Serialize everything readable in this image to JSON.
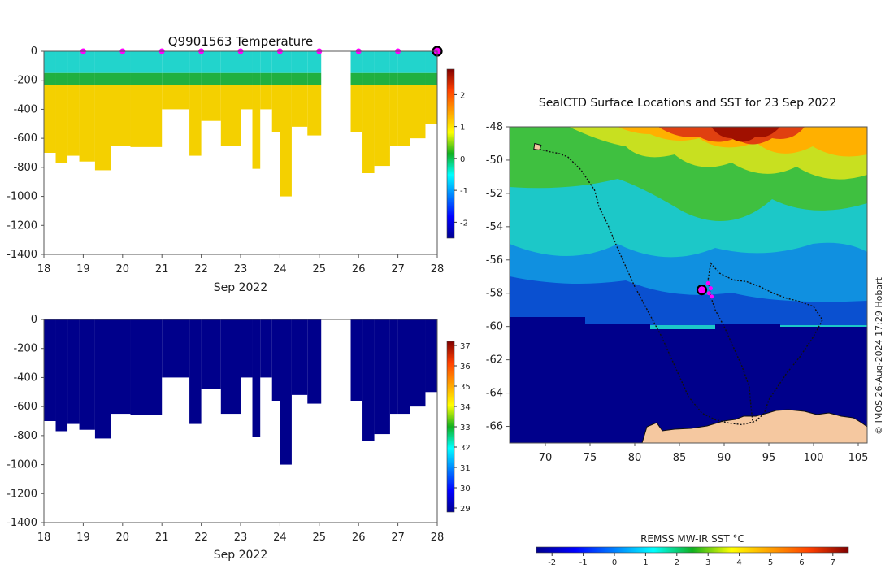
{
  "top_panel": {
    "title": "Q9901563  Temperature",
    "xlabel": "Sep 2022",
    "x_ticks": [
      "18",
      "19",
      "20",
      "21",
      "22",
      "23",
      "24",
      "25",
      "26",
      "27",
      "28"
    ],
    "y_ticks": [
      "0",
      "-200",
      "-400",
      "-600",
      "-800",
      "-1000",
      "-1200",
      "-1400"
    ],
    "colorbar_ticks": [
      "2",
      "1",
      "0",
      "-1",
      "-2"
    ]
  },
  "bottom_panel": {
    "xlabel": "Sep 2022",
    "x_ticks": [
      "18",
      "19",
      "20",
      "21",
      "22",
      "23",
      "24",
      "25",
      "26",
      "27",
      "28"
    ],
    "y_ticks": [
      "0",
      "-200",
      "-400",
      "-600",
      "-800",
      "-1000",
      "-1200",
      "-1400"
    ],
    "colorbar_ticks": [
      "37",
      "36",
      "35",
      "34",
      "33",
      "32",
      "31",
      "30",
      "29"
    ]
  },
  "map_panel": {
    "title": "SealCTD Surface Locations and SST for 23 Sep 2022",
    "x_ticks": [
      "70",
      "75",
      "80",
      "85",
      "90",
      "95",
      "100",
      "105"
    ],
    "y_ticks": [
      "-48",
      "-50",
      "-52",
      "-54",
      "-56",
      "-58",
      "-60",
      "-62",
      "-64",
      "-66"
    ],
    "colorbar_label": "REMSS MW-IR SST °C",
    "colorbar_ticks": [
      "-2",
      "-1",
      "0",
      "1",
      "2",
      "3",
      "4",
      "5",
      "6",
      "7"
    ],
    "watermark": "© IMOS 26-Aug-2024 17:29 Hobart"
  },
  "colors": {
    "marker": "#ff00ff",
    "land": "#f5c8a0",
    "deep_navy": "#00008b"
  },
  "chart_data": [
    {
      "type": "heatmap",
      "title": "Q9901563  Temperature",
      "xlabel": "Sep 2022",
      "ylabel": "",
      "xlim": [
        18,
        28
      ],
      "ylim": [
        -1400,
        0
      ],
      "clim": [
        -2.5,
        2.8
      ],
      "colorbar": "jet",
      "profile_days": [
        18.0,
        18.3,
        18.6,
        18.9,
        19.3,
        19.7,
        20.2,
        21.0,
        21.7,
        22.0,
        22.5,
        23.0,
        23.3,
        23.5,
        23.8,
        24.0,
        24.3,
        24.7,
        25.8,
        26.1,
        26.4,
        26.8,
        27.0,
        27.3,
        27.7,
        28.0
      ],
      "profile_depths": [
        -700,
        -770,
        -720,
        -760,
        -820,
        -650,
        -660,
        -400,
        -720,
        -480,
        -650,
        -400,
        -810,
        -400,
        -560,
        -1000,
        -520,
        -580,
        -560,
        -840,
        -790,
        -650,
        -650,
        -600,
        -500,
        -450
      ],
      "surface_markers_days": [
        19,
        20,
        21,
        22,
        23,
        24,
        25,
        26,
        27
      ],
      "current_position_day": 28
    },
    {
      "type": "heatmap",
      "title": "",
      "xlabel": "Sep 2022",
      "ylabel": "",
      "xlim": [
        18,
        28
      ],
      "ylim": [
        -1400,
        0
      ],
      "clim": [
        28.8,
        37.2
      ],
      "colorbar": "jet",
      "note": "Salinity-style panel; all profile values below colour range (deep navy)"
    },
    {
      "type": "scatter",
      "title": "SealCTD Surface Locations and SST for 23 Sep 2022",
      "xlabel": "",
      "ylabel": "",
      "xlim": [
        66,
        106
      ],
      "ylim": [
        -67,
        -48
      ],
      "clim": [
        -2.5,
        7.5
      ],
      "colorbar_label": "REMSS MW-IR SST °C",
      "track": [
        [
          69.0,
          -49.3
        ],
        [
          70.5,
          -49.5
        ],
        [
          71.5,
          -49.6
        ],
        [
          72.5,
          -49.8
        ],
        [
          74.0,
          -50.6
        ],
        [
          75.5,
          -51.8
        ],
        [
          76.0,
          -52.8
        ],
        [
          77.0,
          -53.9
        ],
        [
          78.0,
          -55.2
        ],
        [
          79.0,
          -56.4
        ],
        [
          80.0,
          -57.6
        ],
        [
          81.0,
          -58.6
        ],
        [
          82.0,
          -59.6
        ],
        [
          83.0,
          -60.6
        ],
        [
          84.0,
          -61.8
        ],
        [
          85.0,
          -63.0
        ],
        [
          86.0,
          -64.2
        ],
        [
          87.5,
          -65.2
        ],
        [
          89.0,
          -65.6
        ],
        [
          90.5,
          -65.8
        ],
        [
          92.0,
          -65.9
        ],
        [
          93.5,
          -65.7
        ],
        [
          94.5,
          -65.2
        ],
        [
          95.0,
          -64.4
        ],
        [
          96.0,
          -63.6
        ],
        [
          97.0,
          -62.8
        ],
        [
          98.5,
          -61.8
        ],
        [
          100.0,
          -60.6
        ],
        [
          101.0,
          -59.6
        ],
        [
          100.0,
          -58.8
        ],
        [
          98.5,
          -58.5
        ],
        [
          97.0,
          -58.3
        ],
        [
          95.5,
          -58.0
        ],
        [
          94.0,
          -57.6
        ],
        [
          92.5,
          -57.3
        ],
        [
          91.0,
          -57.2
        ],
        [
          89.5,
          -56.8
        ],
        [
          88.5,
          -56.2
        ],
        [
          88.2,
          -57.2
        ],
        [
          88.5,
          -58.2
        ],
        [
          89.0,
          -59.0
        ],
        [
          90.0,
          -60.0
        ],
        [
          91.0,
          -61.2
        ],
        [
          92.0,
          -62.4
        ],
        [
          92.8,
          -63.6
        ],
        [
          93.0,
          -64.8
        ],
        [
          93.2,
          -65.8
        ]
      ],
      "recent_points": [
        [
          88.2,
          -57.4
        ],
        [
          88.5,
          -57.7
        ],
        [
          88.3,
          -58.0
        ],
        [
          88.6,
          -58.2
        ]
      ],
      "current_position": [
        87.5,
        -57.8
      ]
    }
  ]
}
